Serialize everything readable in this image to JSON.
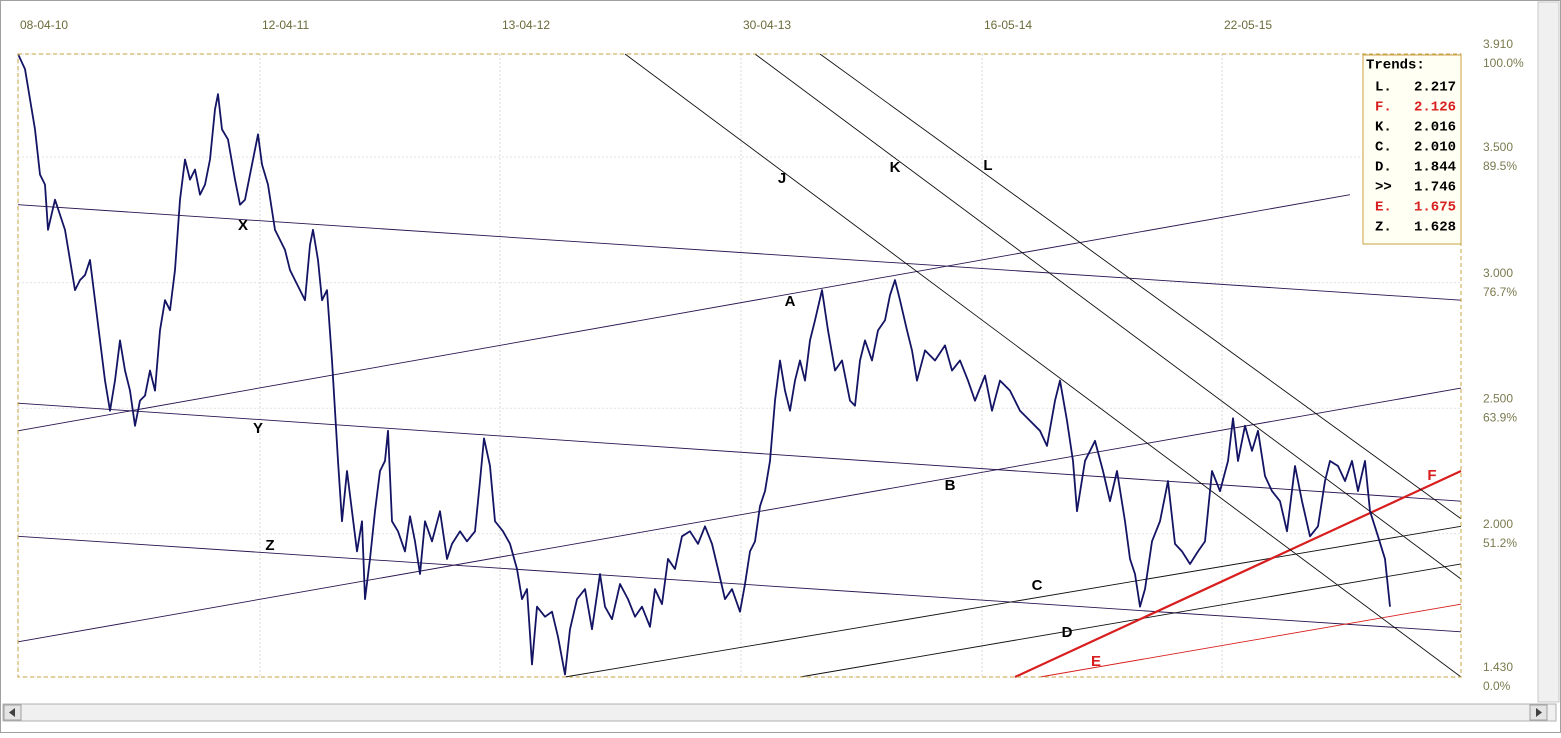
{
  "chart_data": {
    "type": "line",
    "xlim": [
      0,
      1443
    ],
    "xticks": [
      {
        "value": 0,
        "label": "08-04-10"
      },
      {
        "value": 242,
        "label": "12-04-11"
      },
      {
        "value": 482,
        "label": "13-04-12"
      },
      {
        "value": 723,
        "label": "30-04-13"
      },
      {
        "value": 964,
        "label": "16-05-14"
      },
      {
        "value": 1204,
        "label": "22-05-15"
      }
    ],
    "ylim": [
      1.43,
      3.91
    ],
    "yticks": [
      {
        "value": 3.91,
        "label": "3.910"
      },
      {
        "value": 3.5,
        "label": "3.500"
      },
      {
        "value": 3,
        "label": "3.000"
      },
      {
        "value": 2.5,
        "label": "2.500"
      },
      {
        "value": 2,
        "label": "2.000"
      },
      {
        "value": 1.43,
        "label": "1.430"
      }
    ],
    "ytick_percent_labels": [
      "100.0%",
      "89.5%",
      "76.7%",
      "63.9%",
      "51.2%",
      "0.0%"
    ],
    "grid": true,
    "x": [
      0,
      7,
      12,
      17,
      22,
      27,
      30,
      37,
      42,
      47,
      52,
      57,
      62,
      67,
      72,
      77,
      82,
      87,
      92,
      97,
      102,
      107,
      112,
      117,
      122,
      127,
      132,
      137,
      142,
      147,
      152,
      157,
      162,
      167,
      172,
      177,
      182,
      187,
      192,
      197,
      200,
      204,
      210,
      217,
      222,
      227,
      232,
      240,
      244,
      250,
      257,
      262,
      267,
      272,
      277,
      282,
      287,
      292,
      295,
      300,
      304,
      309,
      314,
      317,
      320,
      324,
      329,
      334,
      339,
      344,
      347,
      352,
      357,
      362,
      367,
      370,
      374,
      380,
      387,
      392,
      397,
      402,
      407,
      414,
      422,
      429,
      434,
      442,
      449,
      457,
      462,
      466,
      472,
      477,
      485,
      492,
      499,
      504,
      509,
      514,
      519,
      527,
      534,
      540,
      547,
      552,
      559,
      567,
      574,
      582,
      587,
      594,
      602,
      610,
      617,
      624,
      632,
      637,
      644,
      650,
      657,
      664,
      672,
      680,
      687,
      694,
      700,
      707,
      714,
      722,
      727,
      732,
      737,
      742,
      747,
      752,
      757,
      762,
      767,
      772,
      777,
      782,
      787,
      792,
      797,
      804,
      810,
      817,
      824,
      832,
      837,
      842,
      847,
      854,
      860,
      867,
      872,
      877,
      882,
      889,
      894,
      899,
      907,
      917,
      927,
      934,
      942,
      950,
      957,
      967,
      974,
      982,
      992,
      1002,
      1012,
      1022,
      1029,
      1037,
      1042,
      1049,
      1055,
      1059,
      1067,
      1077,
      1085,
      1092,
      1099,
      1107,
      1112,
      1117,
      1122,
      1127,
      1134,
      1142,
      1150,
      1157,
      1164,
      1172,
      1180,
      1187,
      1194,
      1202,
      1210,
      1215,
      1220,
      1227,
      1234,
      1240,
      1247,
      1254,
      1262,
      1269,
      1277,
      1284,
      1292,
      1300,
      1307,
      1312,
      1320,
      1327,
      1334,
      1340,
      1347,
      1352,
      1360,
      1367,
      1372
    ],
    "series": [
      {
        "color": "#141464",
        "values": [
          3.91,
          3.85,
          3.73,
          3.61,
          3.43,
          3.39,
          3.21,
          3.33,
          3.27,
          3.21,
          3.09,
          2.97,
          3.01,
          3.03,
          3.09,
          2.93,
          2.77,
          2.61,
          2.49,
          2.61,
          2.77,
          2.65,
          2.57,
          2.43,
          2.53,
          2.55,
          2.65,
          2.57,
          2.81,
          2.93,
          2.89,
          3.05,
          3.33,
          3.49,
          3.41,
          3.45,
          3.35,
          3.39,
          3.49,
          3.69,
          3.75,
          3.61,
          3.57,
          3.41,
          3.31,
          3.33,
          3.43,
          3.59,
          3.47,
          3.39,
          3.21,
          3.17,
          3.13,
          3.05,
          3.01,
          2.97,
          2.93,
          3.15,
          3.21,
          3.09,
          2.93,
          2.97,
          2.69,
          2.49,
          2.29,
          2.05,
          2.25,
          2.09,
          1.93,
          2.05,
          1.74,
          1.9,
          2.09,
          2.25,
          2.29,
          2.41,
          2.05,
          2.01,
          1.93,
          2.07,
          1.97,
          1.84,
          2.05,
          1.97,
          2.09,
          1.9,
          1.96,
          2.01,
          1.97,
          2.01,
          2.21,
          2.38,
          2.27,
          2.05,
          2.01,
          1.96,
          1.86,
          1.74,
          1.78,
          1.48,
          1.71,
          1.67,
          1.69,
          1.59,
          1.44,
          1.62,
          1.74,
          1.78,
          1.62,
          1.84,
          1.71,
          1.66,
          1.8,
          1.74,
          1.67,
          1.71,
          1.63,
          1.78,
          1.72,
          1.9,
          1.86,
          1.99,
          2.01,
          1.96,
          2.03,
          1.96,
          1.86,
          1.74,
          1.78,
          1.69,
          1.8,
          1.93,
          1.97,
          2.11,
          2.17,
          2.29,
          2.53,
          2.69,
          2.57,
          2.49,
          2.61,
          2.69,
          2.61,
          2.77,
          2.85,
          2.97,
          2.81,
          2.65,
          2.69,
          2.53,
          2.51,
          2.69,
          2.77,
          2.69,
          2.81,
          2.85,
          2.95,
          3.01,
          2.93,
          2.81,
          2.73,
          2.61,
          2.73,
          2.69,
          2.75,
          2.65,
          2.69,
          2.61,
          2.53,
          2.63,
          2.49,
          2.61,
          2.57,
          2.49,
          2.45,
          2.41,
          2.35,
          2.53,
          2.61,
          2.45,
          2.29,
          2.09,
          2.29,
          2.37,
          2.25,
          2.13,
          2.25,
          2.05,
          1.9,
          1.84,
          1.71,
          1.78,
          1.97,
          2.05,
          2.21,
          1.96,
          1.93,
          1.88,
          1.93,
          1.97,
          2.25,
          2.17,
          2.29,
          2.46,
          2.29,
          2.43,
          2.33,
          2.41,
          2.23,
          2.17,
          2.13,
          2.01,
          2.27,
          2.13,
          1.99,
          2.03,
          2.21,
          2.29,
          2.27,
          2.21,
          2.29,
          2.17,
          2.29,
          2.09,
          1.99,
          1.9,
          1.71
        ]
      }
    ],
    "trendlines": [
      {
        "name": "X",
        "color": "#2a1450",
        "x": [
          0,
          1443
        ],
        "y": [
          3.31,
          2.93
        ]
      },
      {
        "name": "Y",
        "color": "#2a1450",
        "x": [
          0,
          1443
        ],
        "y": [
          2.52,
          2.13
        ]
      },
      {
        "name": "A",
        "color": "#2a1450",
        "x": [
          0,
          1332
        ],
        "y": [
          2.41,
          3.35
        ]
      },
      {
        "name": "B",
        "color": "#2a1450",
        "x": [
          0,
          1443
        ],
        "y": [
          1.57,
          2.58
        ]
      },
      {
        "name": "Z",
        "color": "#2a1450",
        "x": [
          0,
          1443
        ],
        "y": [
          1.99,
          1.61
        ]
      },
      {
        "name": "C",
        "color": "#101010",
        "x": [
          547,
          1443
        ],
        "y": [
          1.43,
          2.03
        ]
      },
      {
        "name": "D",
        "color": "#101010",
        "x": [
          782,
          1443
        ],
        "y": [
          1.43,
          1.88
        ]
      },
      {
        "name": "F",
        "color": "#d81e1e",
        "x": [
          997,
          1443
        ],
        "y": [
          1.43,
          2.25
        ]
      },
      {
        "name": "E",
        "color": "#d81e1e",
        "x": [
          1022,
          1443
        ],
        "y": [
          1.43,
          1.72
        ]
      },
      {
        "name": "J",
        "color": "#101010",
        "x": [
          607,
          1443
        ],
        "y": [
          3.91,
          1.43
        ]
      },
      {
        "name": "K",
        "color": "#101010",
        "x": [
          737,
          1443
        ],
        "y": [
          3.91,
          1.82
        ]
      },
      {
        "name": "L",
        "color": "#101010",
        "x": [
          802,
          1443
        ],
        "y": [
          3.91,
          2.06
        ]
      }
    ],
    "trends_box": {
      "title": "Trends:",
      "rows": [
        {
          "name": "L.",
          "value": "2.217",
          "color": "#000000"
        },
        {
          "name": "F.",
          "value": "2.126",
          "color": "#d81e1e"
        },
        {
          "name": "K.",
          "value": "2.016",
          "color": "#000000"
        },
        {
          "name": "C.",
          "value": "2.010",
          "color": "#000000"
        },
        {
          "name": "D.",
          "value": "1.844",
          "color": "#000000"
        },
        {
          "name": ">>",
          "value": "1.746",
          "color": "#000000"
        },
        {
          "name": "E.",
          "value": "1.675",
          "color": "#d81e1e"
        },
        {
          "name": "Z.",
          "value": "1.628",
          "color": "#000000"
        }
      ]
    }
  }
}
